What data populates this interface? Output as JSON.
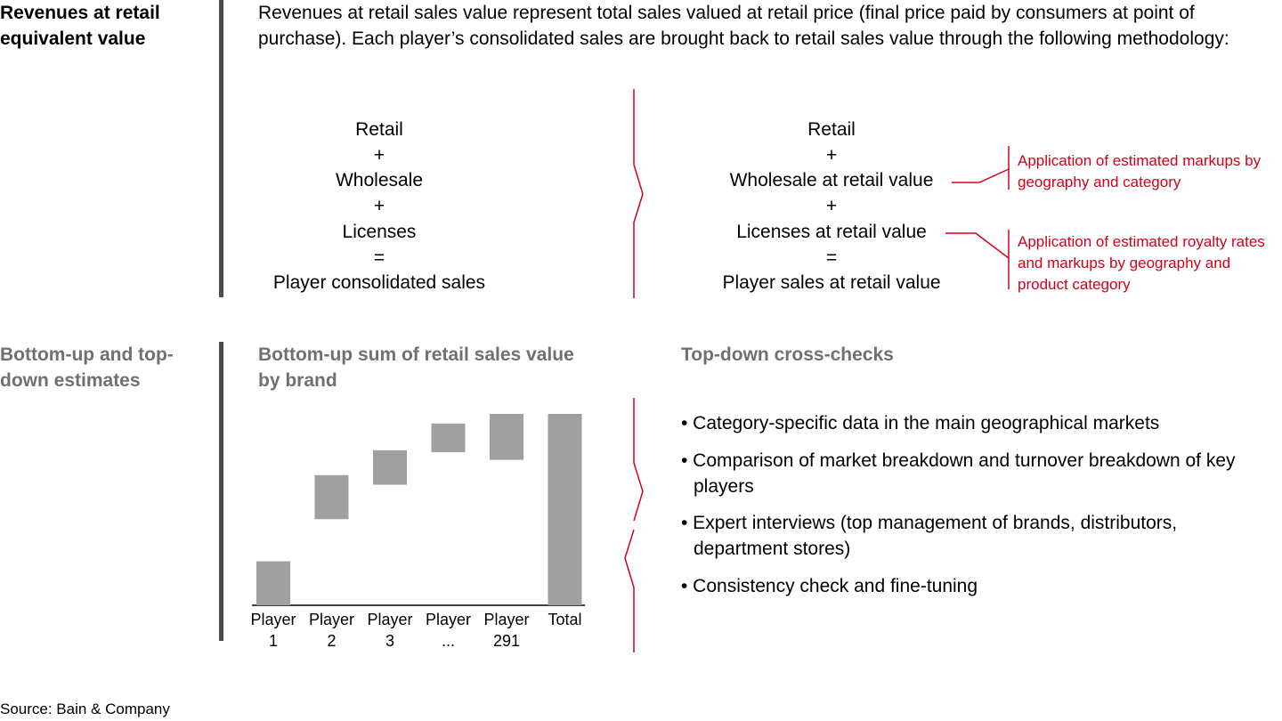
{
  "section1": {
    "title": "Revenues at retail equivalent value",
    "description": "Revenues at retail sales value represent total sales valued at retail price (final price paid by consumers at point of purchase). Each player’s consolidated sales are brought back to retail sales value through the following methodology:",
    "left_column": [
      "Retail",
      "+",
      "Wholesale",
      "+",
      "Licenses",
      "=",
      "Player consolidated sales"
    ],
    "right_column": [
      "Retail",
      "+",
      "Wholesale at retail value",
      "+",
      "Licenses at retail value",
      "=",
      "Player sales at retail value"
    ],
    "notes": [
      "Application of estimated markups by geography and category",
      "Application of estimated royalty rates and markups by geography and product category"
    ],
    "accent_color": "#d0021b"
  },
  "section2": {
    "title": "Bottom-up and top-down estimates",
    "chart_title": "Bottom-up sum of retail sales value by brand",
    "checks_title": "Top-down cross-checks",
    "bullets": [
      "• Category-specific data in the main geographical markets",
      "• Comparison of market breakdown and turnover breakdown of key players",
      "• Expert interviews (top management of brands, distributors, department stores)",
      "• Consistency check and fine-tuning"
    ]
  },
  "chart_data": {
    "type": "bar",
    "subtype": "waterfall",
    "categories": [
      [
        "Player",
        "1"
      ],
      [
        "Player",
        "2"
      ],
      [
        "Player",
        "3"
      ],
      [
        "Player",
        "..."
      ],
      [
        "Player",
        "291"
      ],
      [
        "Total"
      ]
    ],
    "bars": [
      {
        "start": 0,
        "end": 23
      },
      {
        "start": 45,
        "end": 68
      },
      {
        "start": 63,
        "end": 81
      },
      {
        "start": 80,
        "end": 95
      },
      {
        "start": 76,
        "end": 100
      },
      {
        "start": 0,
        "end": 100
      }
    ],
    "bar_color": "#a0a0a0",
    "axis_labels_shown": false
  },
  "source": "Source: Bain & Company"
}
